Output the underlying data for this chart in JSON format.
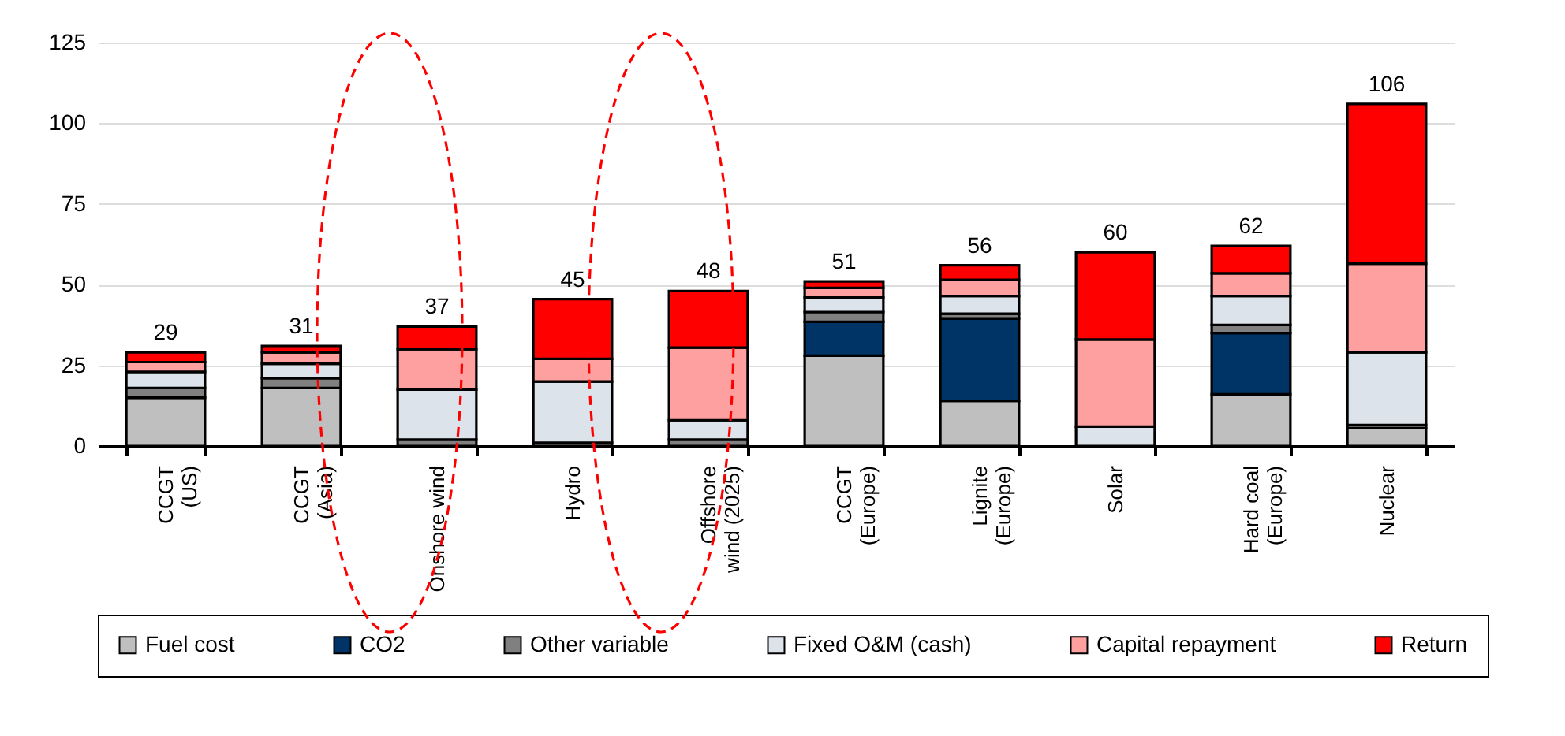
{
  "chart_data": {
    "type": "bar",
    "stacked": true,
    "categories": [
      "CCGT\n(US)",
      "CCGT\n(Asia)",
      "Onshore wind",
      "Hydro",
      "Offshore\nwind (2025)",
      "CCGT\n(Europe)",
      "Lignite\n(Europe)",
      "Solar",
      "Hard coal\n(Europe)",
      "Nuclear"
    ],
    "series": [
      {
        "name": "Fuel cost",
        "color": "#bfbfbf",
        "values": [
          15,
          18,
          0,
          0,
          0,
          28,
          14,
          0,
          16,
          5.5
        ]
      },
      {
        "name": "CO2",
        "color": "#003366",
        "values": [
          0,
          0,
          0,
          0,
          0,
          10.5,
          25.5,
          0,
          19,
          0
        ]
      },
      {
        "name": "Other variable",
        "color": "#808080",
        "values": [
          3,
          3,
          2,
          1,
          2,
          3,
          1.5,
          0,
          2.5,
          1
        ]
      },
      {
        "name": "Fixed O&M (cash)",
        "color": "#dce3ea",
        "values": [
          5,
          4.5,
          15.5,
          19,
          6,
          4.5,
          5.5,
          6,
          9,
          22.5
        ]
      },
      {
        "name": "Capital repayment",
        "color": "#ffa0a0",
        "values": [
          3,
          3.5,
          12.5,
          7,
          22.5,
          3,
          5,
          27,
          7,
          27.5
        ]
      },
      {
        "name": "Return",
        "color": "#ff0000",
        "values": [
          3,
          2,
          7,
          18.5,
          17.5,
          2,
          4.5,
          27,
          8.5,
          49.5
        ]
      }
    ],
    "totals": [
      "29",
      "31",
      "37",
      "45",
      "48",
      "51",
      "56",
      "60",
      "62",
      "106"
    ],
    "ylim": [
      0,
      125
    ],
    "yticks": [
      0,
      25,
      50,
      75,
      100,
      125
    ],
    "grid": "y",
    "legend": "bottom"
  }
}
